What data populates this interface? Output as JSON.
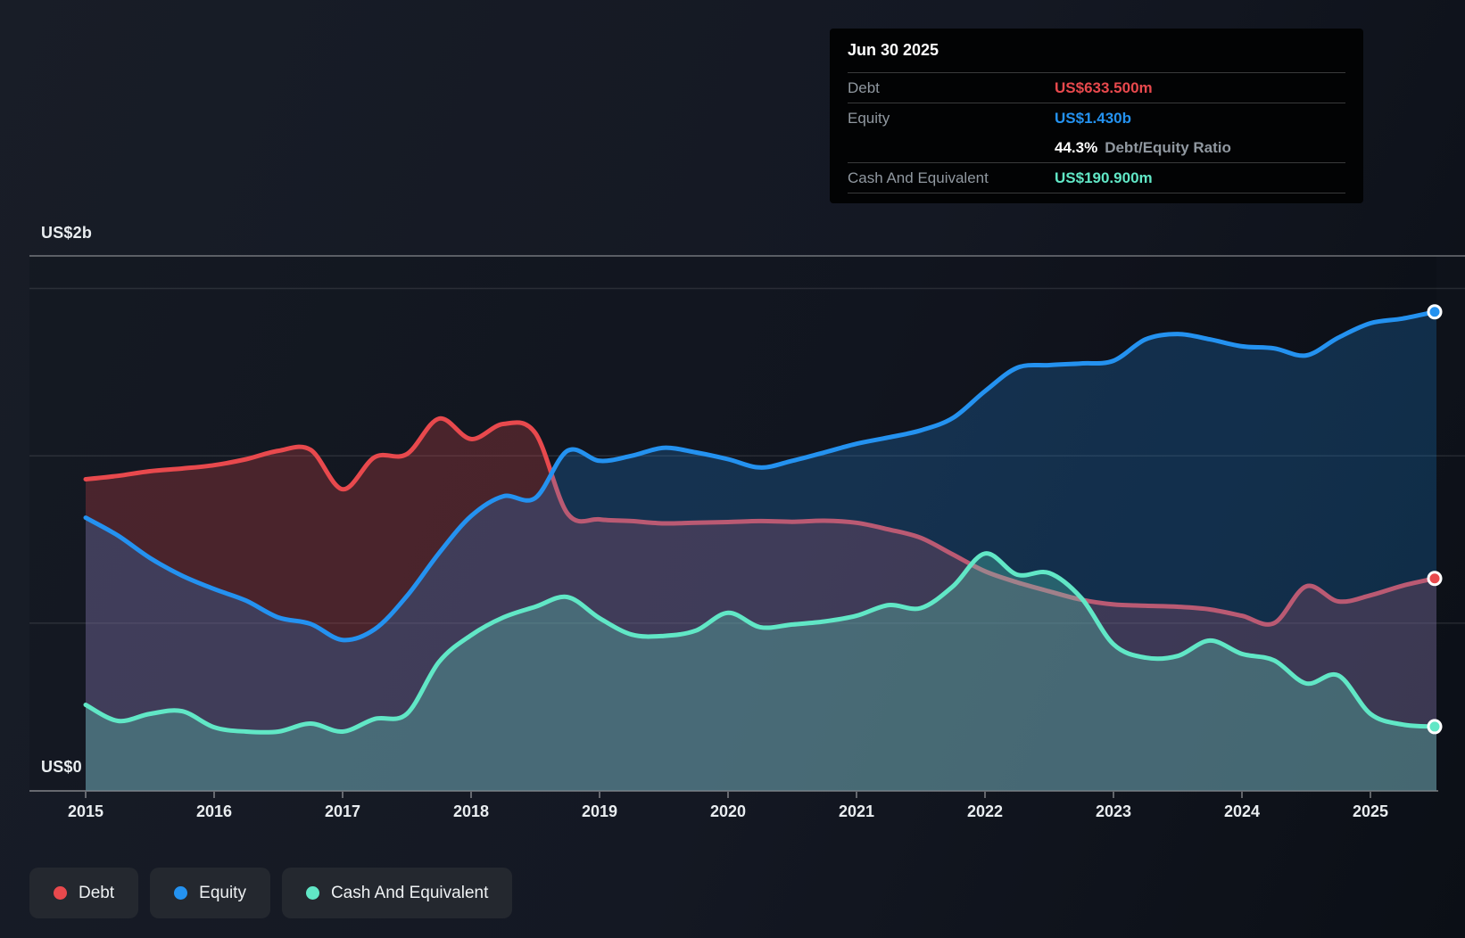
{
  "y_axis": {
    "top_label": "US$2b",
    "zero_label": "US$0"
  },
  "tooltip": {
    "title": "Jun 30 2025",
    "debt_label": "Debt",
    "debt_value": "US$633.500m",
    "equity_label": "Equity",
    "equity_value": "US$1.430b",
    "ratio_value": "44.3%",
    "ratio_label": "Debt/Equity Ratio",
    "cash_label": "Cash And Equivalent",
    "cash_value": "US$190.900m"
  },
  "legend": {
    "items": [
      {
        "label": "Debt"
      },
      {
        "label": "Equity"
      },
      {
        "label": "Cash And Equivalent"
      }
    ]
  },
  "chart_data": {
    "type": "area",
    "unit": "US$ millions",
    "ylim_m": [
      0,
      2000
    ],
    "y_gridline_values_m": [
      500,
      1000,
      1500
    ],
    "x_ticks": [
      "2015",
      "2016",
      "2017",
      "2018",
      "2019",
      "2020",
      "2021",
      "2022",
      "2023",
      "2024",
      "2025"
    ],
    "x_years": [
      2015.0,
      2015.25,
      2015.5,
      2015.75,
      2016.0,
      2016.25,
      2016.5,
      2016.75,
      2017.0,
      2017.25,
      2017.5,
      2017.75,
      2018.0,
      2018.25,
      2018.5,
      2018.75,
      2019.0,
      2019.25,
      2019.5,
      2019.75,
      2020.0,
      2020.25,
      2020.5,
      2020.75,
      2021.0,
      2021.25,
      2021.5,
      2021.75,
      2022.0,
      2022.25,
      2022.5,
      2022.75,
      2023.0,
      2023.25,
      2023.5,
      2023.75,
      2024.0,
      2024.25,
      2024.5,
      2024.75,
      2025.0,
      2025.25,
      2025.5
    ],
    "series": [
      {
        "name": "Debt",
        "color": "#e8494d",
        "values": [
          930,
          940,
          954,
          962,
          972,
          990,
          1015,
          1018,
          900,
          996,
          1005,
          1111,
          1050,
          1095,
          1068,
          828,
          810,
          805,
          798,
          800,
          802,
          805,
          803,
          806,
          800,
          780,
          755,
          705,
          655,
          622,
          595,
          570,
          556,
          552,
          549,
          541,
          522,
          500,
          610,
          565,
          583,
          612,
          633.5
        ]
      },
      {
        "name": "Equity",
        "color": "#2492f0",
        "values": [
          815,
          762,
          695,
          642,
          602,
          567,
          517,
          498,
          450,
          482,
          581,
          709,
          820,
          879,
          874,
          1015,
          985,
          1000,
          1024,
          1010,
          990,
          965,
          985,
          1010,
          1036,
          1055,
          1076,
          1113,
          1193,
          1263,
          1271,
          1276,
          1284,
          1348,
          1364,
          1348,
          1327,
          1321,
          1300,
          1353,
          1396,
          1410,
          1430
        ]
      },
      {
        "name": "Cash And Equivalent",
        "color": "#61e7c6",
        "values": [
          256,
          208,
          229,
          237,
          189,
          176,
          176,
          200,
          176,
          214,
          229,
          384,
          464,
          517,
          549,
          578,
          515,
          466,
          462,
          478,
          531,
          488,
          496,
          505,
          522,
          554,
          545,
          610,
          708,
          645,
          650,
          575,
          437,
          397,
          402,
          448,
          408,
          389,
          320,
          344,
          229,
          197,
          190.9
        ]
      }
    ]
  }
}
